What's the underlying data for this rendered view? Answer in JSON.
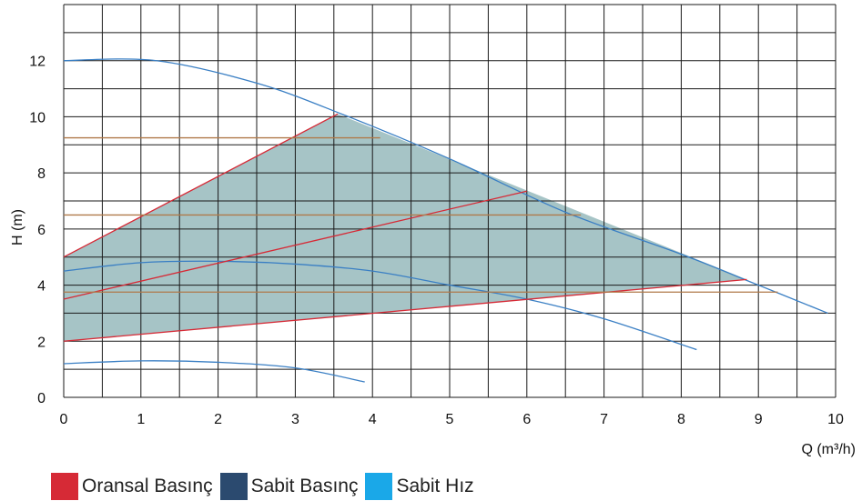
{
  "chart_data": {
    "type": "line",
    "xlabel": "Q (m³/h)",
    "ylabel": "H (m)",
    "xlim": [
      0,
      10
    ],
    "ylim": [
      0,
      14
    ],
    "xticks": [
      0,
      1,
      2,
      3,
      4,
      5,
      6,
      7,
      8,
      9,
      10
    ],
    "yticks": [
      0,
      2,
      4,
      6,
      8,
      10,
      12
    ],
    "grid": true,
    "legend_position": "bottom-left",
    "legend": [
      {
        "label": "Oransal Basınç",
        "color": "#d62a36"
      },
      {
        "label": "Sabit Basınç",
        "color": "#2b4a6f"
      },
      {
        "label": "Sabit Hız",
        "color": "#1aa8e8"
      }
    ],
    "shaded_region": {
      "color": "#a6c4c6",
      "points": [
        [
          0,
          2.0
        ],
        [
          0,
          5.0
        ],
        [
          3.55,
          10.1
        ],
        [
          8.85,
          4.2
        ]
      ]
    },
    "series": [
      {
        "kind": "sabit-hiz",
        "color": "#3a7fc4",
        "points": [
          [
            0,
            12.0
          ],
          [
            1.2,
            12.0
          ],
          [
            2.5,
            11.2
          ],
          [
            3.6,
            10.1
          ],
          [
            5.0,
            8.5
          ],
          [
            6.5,
            6.6
          ],
          [
            8.0,
            5.1
          ],
          [
            9.0,
            4.0
          ],
          [
            9.9,
            3.0
          ]
        ]
      },
      {
        "kind": "sabit-hiz",
        "color": "#3a7fc4",
        "points": [
          [
            0,
            4.5
          ],
          [
            1.0,
            4.8
          ],
          [
            2.0,
            4.85
          ],
          [
            3.0,
            4.75
          ],
          [
            4.0,
            4.5
          ],
          [
            5.0,
            4.0
          ],
          [
            6.0,
            3.5
          ],
          [
            7.0,
            2.8
          ],
          [
            8.2,
            1.7
          ]
        ]
      },
      {
        "kind": "sabit-hiz",
        "color": "#3a7fc4",
        "points": [
          [
            0,
            1.2
          ],
          [
            1.0,
            1.3
          ],
          [
            2.0,
            1.25
          ],
          [
            3.0,
            1.05
          ],
          [
            3.9,
            0.55
          ]
        ]
      },
      {
        "kind": "oransal",
        "color": "#d62a36",
        "points": [
          [
            0,
            5.0
          ],
          [
            3.55,
            10.1
          ]
        ]
      },
      {
        "kind": "oransal",
        "color": "#d62a36",
        "points": [
          [
            0,
            3.5
          ],
          [
            6.0,
            7.35
          ]
        ]
      },
      {
        "kind": "oransal",
        "color": "#d62a36",
        "points": [
          [
            0,
            2.0
          ],
          [
            8.85,
            4.2
          ]
        ]
      },
      {
        "kind": "sabit-basinc",
        "color": "#b07a4a",
        "points": [
          [
            0,
            9.25
          ],
          [
            4.1,
            9.25
          ]
        ]
      },
      {
        "kind": "sabit-basinc",
        "color": "#b07a4a",
        "points": [
          [
            0,
            6.5
          ],
          [
            6.7,
            6.5
          ]
        ]
      },
      {
        "kind": "sabit-basinc",
        "color": "#b07a4a",
        "points": [
          [
            0,
            3.75
          ],
          [
            9.25,
            3.75
          ]
        ]
      }
    ]
  }
}
